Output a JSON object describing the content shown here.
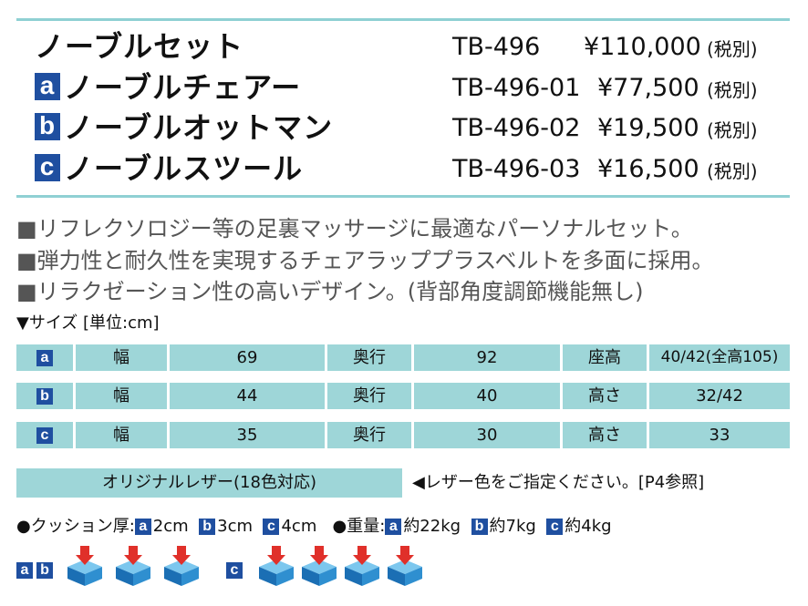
{
  "products": [
    {
      "badge": "",
      "name": "ノーブルセット",
      "code": "TB-496",
      "price": "¥110,000",
      "tax": "(税別)"
    },
    {
      "badge": "a",
      "name": "ノーブルチェアー",
      "code": "TB-496-01",
      "price": "¥77,500",
      "tax": "(税別)"
    },
    {
      "badge": "b",
      "name": "ノーブルオットマン",
      "code": "TB-496-02",
      "price": "¥19,500",
      "tax": "(税別)"
    },
    {
      "badge": "c",
      "name": "ノーブルスツール",
      "code": "TB-496-03",
      "price": "¥16,500",
      "tax": "(税別)"
    }
  ],
  "features": [
    "■リフレクソロジー等の足裏マッサージに最適なパーソナルセット。",
    "■弾力性と耐久性を実現するチェアラッププラスベルトを多面に採用。",
    "■リラクゼーション性の高いデザイン。(背部角度調節機能無し)"
  ],
  "size_title": "▼サイズ [単位:cm]",
  "size_table": [
    {
      "badge": "a",
      "w_label": "幅",
      "w": "69",
      "d_label": "奥行",
      "d": "92",
      "h_label": "座高",
      "h": "40/42(全高105)"
    },
    {
      "badge": "b",
      "w_label": "幅",
      "w": "44",
      "d_label": "奥行",
      "d": "40",
      "h_label": "高さ",
      "h": "32/42"
    },
    {
      "badge": "c",
      "w_label": "幅",
      "w": "35",
      "d_label": "奥行",
      "d": "30",
      "h_label": "高さ",
      "h": "33"
    }
  ],
  "leather": {
    "label": "オリジナルレザー(18色対応)",
    "note": "◀レザー色をご指定ください。[P4参照]"
  },
  "cushion": {
    "label": "●クッション厚:",
    "a": "2cm",
    "b": "3cm",
    "c": "4cm"
  },
  "weight": {
    "label": "●重量:",
    "a": "約22kg",
    "b": "約7kg",
    "c": "約4kg"
  },
  "icon_badges": {
    "a": "a",
    "b": "b",
    "c": "c"
  },
  "colors": {
    "accent_blue": "#1f4fa0",
    "teal": "#9ed6d8",
    "arrow_red": "#e0302a",
    "cube_blue": "#2f8fd0"
  }
}
